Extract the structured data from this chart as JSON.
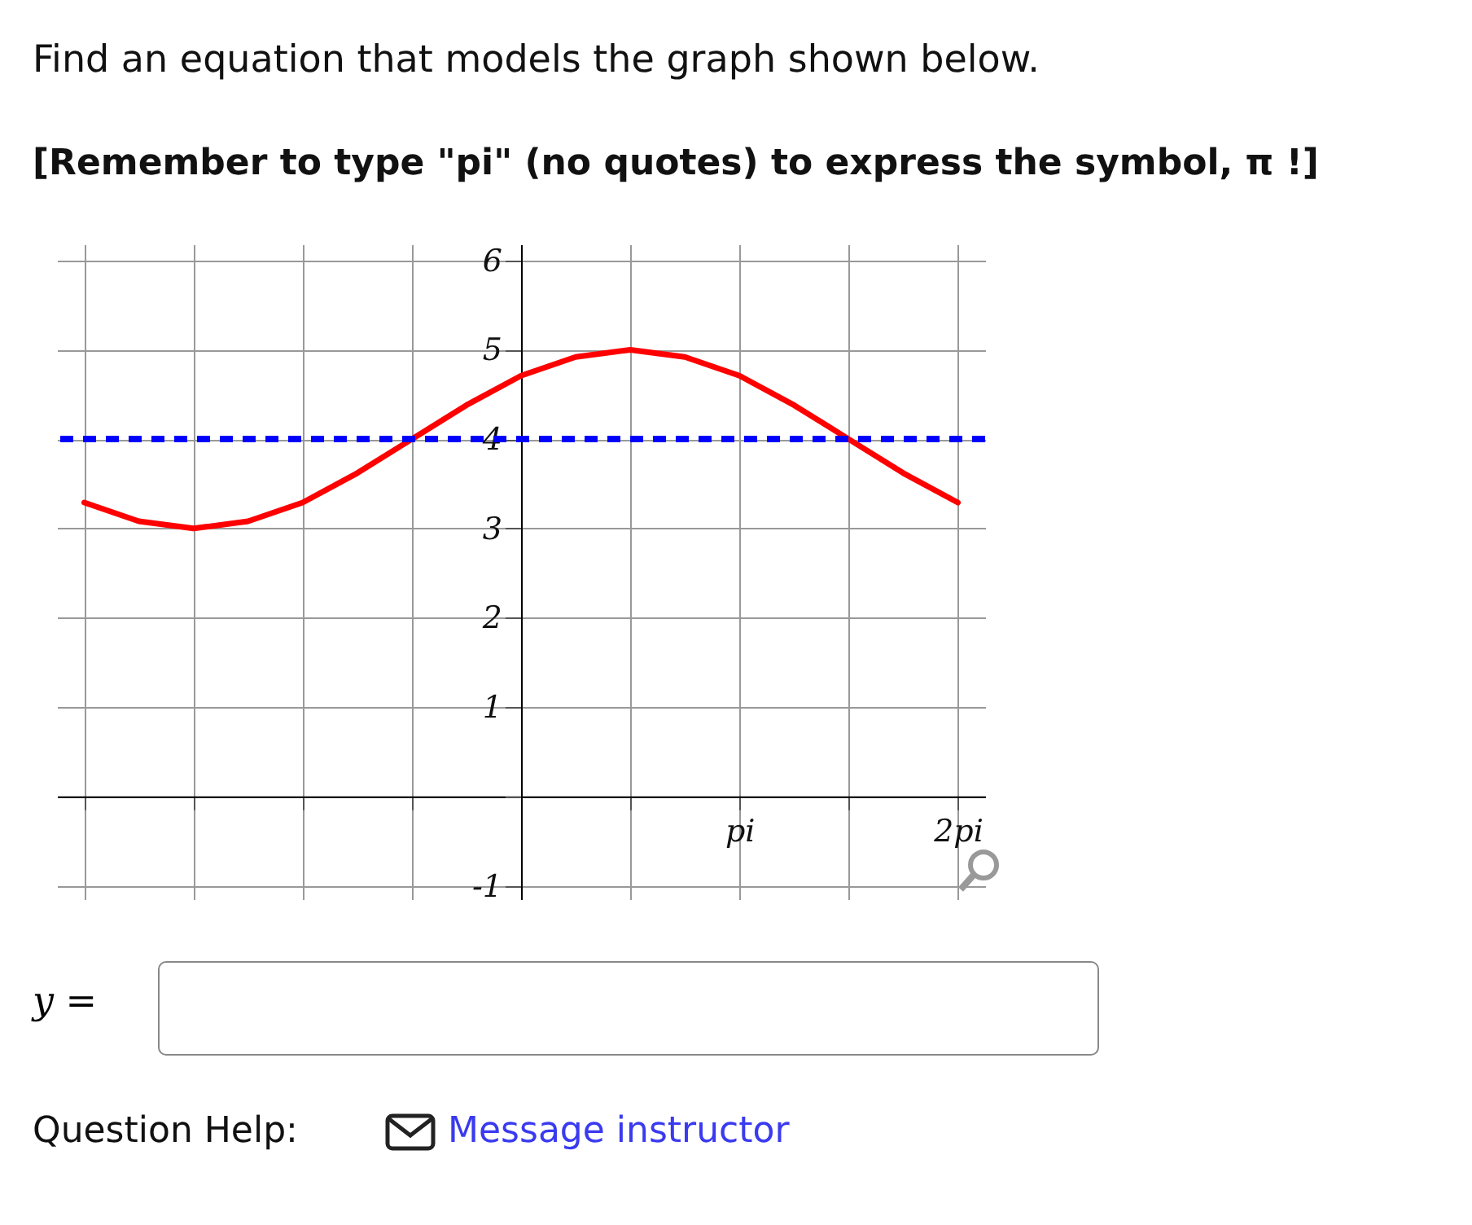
{
  "chart_data": {
    "type": "line",
    "title": "Find an equation that models the graph shown below.",
    "subtitle": "[Remember to type \"pi\" (no quotes) to express the symbol, π !]",
    "categories": [
      null,
      null,
      null,
      null,
      null,
      null,
      null,
      null,
      null,
      null,
      null,
      null,
      "pi",
      null,
      null,
      null,
      "2pi"
    ],
    "series": [
      {
        "color": "#ff0000",
        "values": [
          3.29,
          3.08,
          3,
          3.08,
          3.29,
          3.62,
          4,
          4.38,
          4.71,
          4.92,
          5,
          4.92,
          4.71,
          4.38,
          4,
          3.62,
          3.29
        ]
      }
    ],
    "ylim": [
      -1.15,
      6.18
    ],
    "yticks": [
      -1,
      {
        "value": 0,
        "label": null
      },
      1,
      2,
      3,
      4,
      5,
      6
    ],
    "ref_lines": [
      {
        "axis": "y",
        "value": 4,
        "color": "#0000ff",
        "line_style": "dashed"
      }
    ],
    "grid": true,
    "marker": "none",
    "line_style": "solid",
    "annotations": [
      "y =",
      "Question Help:",
      "Message instructor"
    ]
  }
}
